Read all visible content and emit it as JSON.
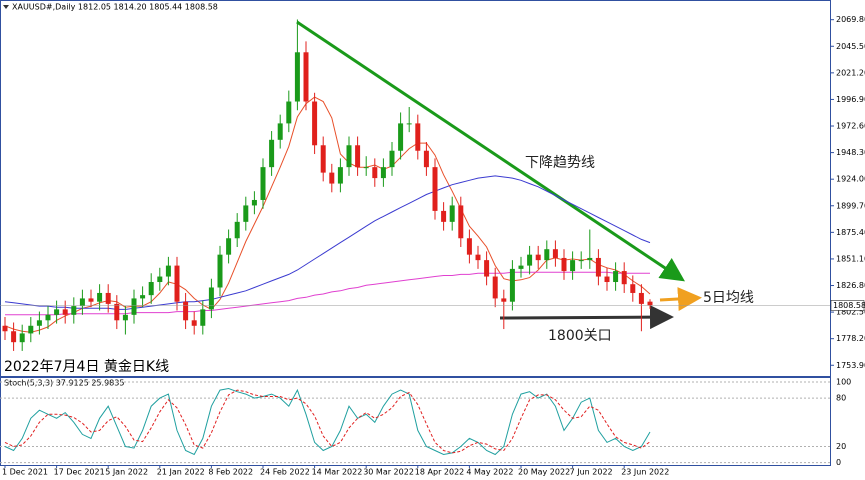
{
  "chart_data": {
    "type": "candlestick",
    "header": "XAUUSD#,Daily  1812.05 1814.20 1805.44 1808.58",
    "caption": "2022年7月4日  黄金日K线",
    "categories": [
      "1 Dec 2021",
      null,
      null,
      null,
      null,
      null,
      "17 Dec 2021",
      null,
      null,
      null,
      null,
      null,
      "5 Jan 2022",
      null,
      null,
      null,
      null,
      null,
      "21 Jan 2022",
      null,
      null,
      null,
      null,
      null,
      "8 Feb 2022",
      null,
      null,
      null,
      null,
      null,
      "24 Feb 2022",
      null,
      null,
      null,
      null,
      null,
      "14 Mar 2022",
      null,
      null,
      null,
      null,
      null,
      "30 Mar 2022",
      null,
      null,
      null,
      null,
      null,
      "18 Apr 2022",
      null,
      null,
      null,
      null,
      null,
      "4 May 2022",
      null,
      null,
      null,
      null,
      null,
      "20 May 2022",
      null,
      null,
      null,
      null,
      null,
      "7 Jun 2022",
      null,
      null,
      null,
      null,
      null,
      "23 Jun 2022",
      null,
      null,
      null
    ],
    "open": [
      1790,
      1785,
      1775,
      1783,
      1790,
      1795,
      1800,
      1805,
      1800,
      1808,
      1815,
      1812,
      1820,
      1810,
      1795,
      1800,
      1815,
      1818,
      1830,
      1835,
      1845,
      1812,
      1795,
      1790,
      1805,
      1825,
      1855,
      1870,
      1885,
      1900,
      1905,
      1935,
      1960,
      1975,
      1995,
      2040,
      1995,
      1955,
      1930,
      1920,
      1935,
      1955,
      1935,
      1935,
      1925,
      1935,
      1950,
      1975,
      1975,
      1950,
      1935,
      1895,
      1885,
      1900,
      1870,
      1855,
      1850,
      1835,
      1815,
      1812,
      1842,
      1845,
      1855,
      1850,
      1860,
      1852,
      1840,
      1850,
      1850,
      1852,
      1835,
      1830,
      1840,
      1828,
      1820,
      1812.05
    ],
    "high": [
      1798,
      1793,
      1791,
      1798,
      1803,
      1808,
      1813,
      1813,
      1816,
      1823,
      1823,
      1828,
      1828,
      1818,
      1808,
      1823,
      1826,
      1838,
      1843,
      1853,
      1853,
      1820,
      1803,
      1813,
      1833,
      1863,
      1878,
      1893,
      1908,
      1913,
      1943,
      1968,
      1983,
      2005,
      2070,
      2050,
      2003,
      1963,
      1938,
      1943,
      1963,
      1963,
      1945,
      1943,
      1943,
      1958,
      1985,
      1990,
      1983,
      1958,
      1943,
      1903,
      1908,
      1908,
      1878,
      1863,
      1858,
      1843,
      1823,
      1850,
      1853,
      1863,
      1863,
      1868,
      1868,
      1860,
      1858,
      1858,
      1878,
      1860,
      1843,
      1848,
      1848,
      1836,
      1828,
      1814.2
    ],
    "low": [
      1777,
      1767,
      1767,
      1775,
      1782,
      1787,
      1792,
      1792,
      1792,
      1800,
      1807,
      1804,
      1802,
      1787,
      1782,
      1792,
      1807,
      1810,
      1822,
      1827,
      1804,
      1787,
      1782,
      1782,
      1797,
      1817,
      1847,
      1862,
      1877,
      1892,
      1897,
      1927,
      1952,
      1967,
      1987,
      1987,
      1947,
      1922,
      1912,
      1912,
      1927,
      1927,
      1927,
      1917,
      1917,
      1927,
      1942,
      1967,
      1942,
      1927,
      1887,
      1877,
      1877,
      1862,
      1847,
      1842,
      1827,
      1807,
      1787,
      1804,
      1834,
      1837,
      1842,
      1842,
      1844,
      1832,
      1832,
      1842,
      1842,
      1827,
      1822,
      1822,
      1820,
      1812,
      1785,
      1805.44
    ],
    "close": [
      1785,
      1775,
      1783,
      1790,
      1795,
      1800,
      1805,
      1800,
      1808,
      1815,
      1812,
      1820,
      1810,
      1795,
      1800,
      1815,
      1818,
      1830,
      1835,
      1845,
      1812,
      1795,
      1790,
      1805,
      1825,
      1855,
      1870,
      1885,
      1900,
      1905,
      1935,
      1960,
      1975,
      1995,
      2040,
      1995,
      1955,
      1930,
      1920,
      1935,
      1955,
      1935,
      1935,
      1925,
      1935,
      1950,
      1975,
      1975,
      1950,
      1935,
      1895,
      1885,
      1900,
      1870,
      1855,
      1850,
      1835,
      1815,
      1812,
      1842,
      1845,
      1855,
      1850,
      1860,
      1852,
      1840,
      1850,
      1850,
      1852,
      1835,
      1830,
      1840,
      1828,
      1820,
      1810,
      1808.58
    ],
    "up_color": "#1a9a1a",
    "down_color": "#e0201c",
    "ylim": [
      1745,
      2075
    ],
    "yticks": [
      {
        "value": 2069.8,
        "label": "2069.80"
      },
      {
        "value": 2045.5,
        "label": "2045.50"
      },
      {
        "value": 2021.2,
        "label": "2021.20"
      },
      {
        "value": 1996.9,
        "label": "1996.90"
      },
      {
        "value": 1972.6,
        "label": "1972.60"
      },
      {
        "value": 1948.3,
        "label": "1948.30"
      },
      {
        "value": 1924,
        "label": "1924.00"
      },
      {
        "value": 1899.7,
        "label": "1899.70"
      },
      {
        "value": 1875.4,
        "label": "1875.40"
      },
      {
        "value": 1851.1,
        "label": "1851.10"
      },
      {
        "value": 1826.8,
        "label": "1826.80"
      },
      {
        "value": 1802.5,
        "label": "1802.50"
      },
      {
        "value": 1778.2,
        "label": "1778.20"
      },
      {
        "value": 1753.9,
        "label": "1753.90"
      }
    ],
    "lines": [
      {
        "color": "#e8502a",
        "values": [
          1790,
          1787,
          1785,
          1784,
          1786,
          1789,
          1795,
          1799,
          1802,
          1806,
          1808,
          1811,
          1813,
          1812,
          1807,
          1808,
          1808,
          1812,
          1820,
          1830,
          1828,
          1823,
          1815,
          1809,
          1805,
          1814,
          1829,
          1848,
          1867,
          1883,
          1899,
          1917,
          1935,
          1954,
          1981,
          1993,
          1999,
          1995,
          1980,
          1947,
          1939,
          1935,
          1935,
          1937,
          1933,
          1936,
          1944,
          1952,
          1957,
          1957,
          1946,
          1928,
          1913,
          1897,
          1881,
          1872,
          1862,
          1845,
          1833,
          1831,
          1832,
          1834,
          1841,
          1850,
          1852,
          1850,
          1851,
          1850,
          1851,
          1846,
          1843,
          1841,
          1837,
          1831,
          1826,
          1819
        ]
      },
      {
        "color": "#3b3bd0",
        "values": [
          1812,
          1811,
          1810,
          1809,
          1808,
          1808,
          1807,
          1807,
          1806,
          1806,
          1806,
          1806,
          1806,
          1805,
          1805,
          1806,
          1807,
          1808,
          1809,
          1810,
          1811,
          1812,
          1812,
          1813,
          1814,
          1816,
          1818,
          1820,
          1822,
          1825,
          1828,
          1831,
          1834,
          1837,
          1841,
          1846,
          1851,
          1856,
          1861,
          1866,
          1871,
          1876,
          1881,
          1886,
          1890,
          1894,
          1898,
          1902,
          1906,
          1910,
          1913,
          1916,
          1919,
          1921,
          1923,
          1925,
          1926,
          1927,
          1926,
          1925,
          1923,
          1920,
          1917,
          1913,
          1909,
          1905,
          1901,
          1897,
          1893,
          1889,
          1885,
          1881,
          1877,
          1873,
          1869,
          1866
        ]
      },
      {
        "color": "#e040d0",
        "values": [
          1800,
          1800,
          1800,
          1800,
          1800,
          1800,
          1800,
          1801,
          1801,
          1801,
          1801,
          1801,
          1801,
          1801,
          1801,
          1802,
          1802,
          1802,
          1802,
          1802,
          1803,
          1803,
          1803,
          1804,
          1804,
          1805,
          1806,
          1807,
          1808,
          1809,
          1810,
          1811,
          1812,
          1813,
          1815,
          1816,
          1818,
          1819,
          1821,
          1822,
          1824,
          1825,
          1827,
          1828,
          1829,
          1830,
          1831,
          1832,
          1833,
          1834,
          1835,
          1836,
          1836,
          1837,
          1837,
          1838,
          1838,
          1838,
          1838,
          1839,
          1839,
          1839,
          1839,
          1839,
          1839,
          1839,
          1839,
          1839,
          1839,
          1839,
          1839,
          1838,
          1838,
          1838,
          1838,
          1838
        ]
      }
    ],
    "annotations": [
      "下降趋势线",
      "5日均线",
      "1800关口"
    ],
    "stoch": {
      "label": "Stoch(5,3,3) 37.9125 25.9835",
      "ylim": [
        -3,
        105
      ],
      "yticks": [
        100,
        80,
        20,
        0
      ],
      "k": {
        "color": "#20a0a0",
        "values": [
          20,
          15,
          30,
          55,
          65,
          60,
          55,
          62,
          50,
          35,
          30,
          55,
          70,
          45,
          20,
          18,
          40,
          70,
          80,
          85,
          40,
          15,
          10,
          30,
          70,
          90,
          92,
          88,
          85,
          80,
          82,
          85,
          80,
          70,
          90,
          60,
          25,
          15,
          20,
          40,
          70,
          55,
          60,
          50,
          70,
          85,
          90,
          85,
          40,
          20,
          15,
          10,
          12,
          20,
          30,
          25,
          15,
          10,
          20,
          60,
          85,
          88,
          80,
          85,
          70,
          40,
          55,
          75,
          80,
          40,
          25,
          30,
          20,
          15,
          20,
          37.9125
        ]
      },
      "d": {
        "color": "#e02020",
        "values": [
          25,
          20,
          22,
          33,
          50,
          60,
          60,
          59,
          56,
          49,
          38,
          40,
          52,
          57,
          45,
          28,
          26,
          43,
          63,
          78,
          68,
          47,
          22,
          18,
          37,
          63,
          84,
          90,
          88,
          84,
          82,
          82,
          82,
          78,
          80,
          73,
          58,
          33,
          20,
          25,
          43,
          55,
          62,
          55,
          60,
          68,
          82,
          87,
          72,
          48,
          25,
          15,
          12,
          14,
          21,
          25,
          23,
          17,
          15,
          30,
          55,
          78,
          84,
          84,
          78,
          65,
          55,
          57,
          70,
          65,
          48,
          32,
          25,
          22,
          18,
          25.9835
        ]
      }
    }
  }
}
